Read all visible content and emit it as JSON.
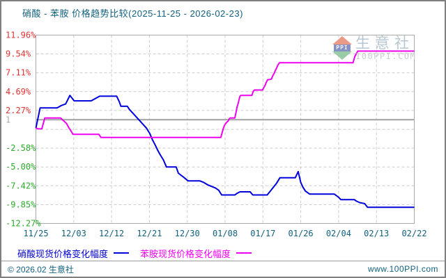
{
  "header": {
    "title": "硝酸 - 苯胺 价格趋势比较(2025-11-25 - 2026-02-23)"
  },
  "colors": {
    "title_text": "#12607e",
    "axis_date_text": "#12607e",
    "positive_tick": "#e03333",
    "negative_tick": "#2aaa2a",
    "neutral_tick": "#aaaaaa",
    "grid": "#cccccc",
    "frame": "#a9a9a9",
    "reference_line": "#a0a0a0",
    "series_nitric": "#0000dd",
    "series_aniline": "#ee00ee"
  },
  "chart_data": {
    "type": "line",
    "title": "硝酸 - 苯胺 价格趋势比较(2025-11-25 - 2026-02-23)",
    "date_range": [
      "2025-11-25",
      "2026-02-23"
    ],
    "grid": true,
    "legend_position": "bottom",
    "x_axis": {
      "tick_labels": [
        "11/25",
        "12/03",
        "12/12",
        "12/21",
        "12/30",
        "01/08",
        "01/17",
        "01/26",
        "02/04",
        "02/13",
        "02/22"
      ],
      "tick_days": [
        0,
        8,
        17,
        26,
        35,
        44,
        53,
        62,
        71,
        80,
        89
      ],
      "range_days": [
        0,
        89
      ]
    },
    "y_axis": {
      "unit": "percent change",
      "ylim": [
        -12.27,
        11.96
      ],
      "ticks": [
        {
          "label": "11.96%",
          "value": 11.96,
          "tone": "positive"
        },
        {
          "label": "9.54%",
          "value": 9.54,
          "tone": "positive"
        },
        {
          "label": "7.11%",
          "value": 7.11,
          "tone": "positive"
        },
        {
          "label": "4.69%",
          "value": 4.69,
          "tone": "positive"
        },
        {
          "label": "2.27%",
          "value": 2.27,
          "tone": "positive"
        },
        {
          "label": "1",
          "value": 1.07,
          "tone": "neutral"
        },
        {
          "label": "-2.58%",
          "value": -2.58,
          "tone": "negative"
        },
        {
          "label": "-5.00%",
          "value": -5.0,
          "tone": "negative"
        },
        {
          "label": "-7.42%",
          "value": -7.42,
          "tone": "negative"
        },
        {
          "label": "-9.85%",
          "value": -9.85,
          "tone": "negative"
        },
        {
          "label": "-12.27%",
          "value": -12.27,
          "tone": "negative"
        }
      ],
      "gridline_values": [
        9.54,
        7.11,
        4.69,
        2.27,
        -0.16,
        -2.58,
        -5.0,
        -7.42,
        -9.85
      ],
      "reference_line": {
        "label": "1",
        "value": 1.07
      }
    },
    "series": [
      {
        "name": "硝酸现货价格变化幅度",
        "color_key": "series_nitric",
        "points": [
          [
            0,
            0
          ],
          [
            1,
            2.6
          ],
          [
            5,
            2.6
          ],
          [
            6,
            2.9
          ],
          [
            7,
            3.1
          ],
          [
            8,
            4.2
          ],
          [
            9,
            3.5
          ],
          [
            13,
            3.5
          ],
          [
            14,
            3.8
          ],
          [
            15,
            4.1
          ],
          [
            19,
            4.1
          ],
          [
            19.6,
            3.4
          ],
          [
            20,
            2.8
          ],
          [
            21.5,
            2.8
          ],
          [
            22,
            2.4
          ],
          [
            23,
            1.8
          ],
          [
            24,
            1.2
          ],
          [
            25,
            0.6
          ],
          [
            26,
            0
          ],
          [
            26.8,
            -0.7
          ],
          [
            27.4,
            -1.5
          ],
          [
            28,
            -2.1
          ],
          [
            28.6,
            -2.8
          ],
          [
            29.3,
            -3.5
          ],
          [
            30,
            -4.1
          ],
          [
            30.7,
            -5.0
          ],
          [
            33,
            -5.0
          ],
          [
            33.5,
            -5.8
          ],
          [
            34.2,
            -6.1
          ],
          [
            34.7,
            -6.3
          ],
          [
            35.8,
            -6.8
          ],
          [
            38.6,
            -6.8
          ],
          [
            39.5,
            -7.0
          ],
          [
            40.4,
            -7.3
          ],
          [
            41.3,
            -7.5
          ],
          [
            42.2,
            -7.7
          ],
          [
            43,
            -8.0
          ],
          [
            43.7,
            -8.6
          ],
          [
            46.8,
            -8.6
          ],
          [
            47.3,
            -8.4
          ],
          [
            48,
            -8.2
          ],
          [
            50.4,
            -8.2
          ],
          [
            51,
            -8.6
          ],
          [
            54.4,
            -8.6
          ],
          [
            55.3,
            -8.0
          ],
          [
            56,
            -7.5
          ],
          [
            56.6,
            -7.1
          ],
          [
            57.4,
            -6.4
          ],
          [
            61,
            -6.4
          ],
          [
            61.7,
            -5.6
          ],
          [
            62.3,
            -7.0
          ],
          [
            62.8,
            -7.6
          ],
          [
            63.4,
            -8.1
          ],
          [
            64.4,
            -8.5
          ],
          [
            70.2,
            -8.5
          ],
          [
            70.7,
            -8.7
          ],
          [
            71.2,
            -8.9
          ],
          [
            71.7,
            -9.2
          ],
          [
            74.9,
            -9.2
          ],
          [
            75.4,
            -9.4
          ],
          [
            76.2,
            -9.6
          ],
          [
            77.3,
            -9.7
          ],
          [
            78,
            -10.2
          ],
          [
            89,
            -10.2
          ]
        ]
      },
      {
        "name": "苯胺现货价格变化幅度",
        "color_key": "series_aniline",
        "points": [
          [
            0,
            0
          ],
          [
            0.6,
            -0.1
          ],
          [
            1.4,
            -0.1
          ],
          [
            2.1,
            1.3
          ],
          [
            5.8,
            1.3
          ],
          [
            7.2,
            0.6
          ],
          [
            7.8,
            0
          ],
          [
            8.3,
            -0.4
          ],
          [
            8.7,
            -0.8
          ],
          [
            14.8,
            -0.8
          ],
          [
            15.3,
            -1.2
          ],
          [
            43.5,
            -1.2
          ],
          [
            43.8,
            -0.6
          ],
          [
            44.1,
            0
          ],
          [
            44.4,
            0.4
          ],
          [
            44.8,
            0.7
          ],
          [
            45.2,
            0.9
          ],
          [
            45.5,
            1.2
          ],
          [
            45.7,
            1.3
          ],
          [
            46.8,
            1.3
          ],
          [
            47.1,
            2.1
          ],
          [
            47.3,
            2.7
          ],
          [
            47.6,
            3.2
          ],
          [
            47.8,
            3.7
          ],
          [
            48,
            4.1
          ],
          [
            48.2,
            4.2
          ],
          [
            50.8,
            4.2
          ],
          [
            51.1,
            4.7
          ],
          [
            51.4,
            4.9
          ],
          [
            53.3,
            4.9
          ],
          [
            53.6,
            5.2
          ],
          [
            53.9,
            5.5
          ],
          [
            54.2,
            5.9
          ],
          [
            54.5,
            6.2
          ],
          [
            55.4,
            6.3
          ],
          [
            55.7,
            6.7
          ],
          [
            56,
            7.0
          ],
          [
            56.3,
            7.4
          ],
          [
            56.6,
            7.7
          ],
          [
            56.9,
            8.1
          ],
          [
            57.3,
            8.4
          ],
          [
            74.6,
            8.4
          ],
          [
            75,
            9.2
          ],
          [
            75.7,
            9.9
          ],
          [
            89,
            9.9
          ]
        ]
      }
    ]
  },
  "watermark": {
    "logo_text": "PPI",
    "site_name": "生意社",
    "site_url": "100PPI.COM"
  },
  "footer": {
    "left": "© 2026.02 生意社",
    "right": "www.100PPI.com"
  }
}
